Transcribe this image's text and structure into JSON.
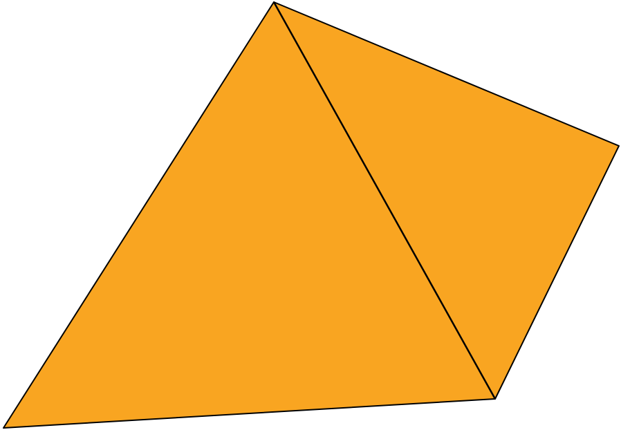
{
  "diagram": {
    "fill_color": "#F9A521",
    "stroke_color": "#000000",
    "shapes": [
      {
        "name": "left-face",
        "shape": "triangle"
      },
      {
        "name": "right-face",
        "shape": "triangle"
      }
    ]
  }
}
